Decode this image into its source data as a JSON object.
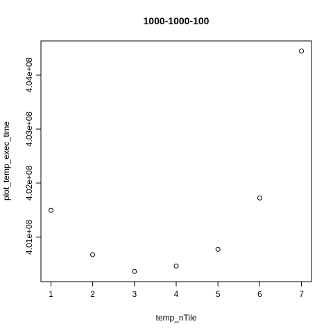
{
  "chart_data": {
    "type": "scatter",
    "title": "1000-1000-100",
    "xlabel": "temp_nTile",
    "ylabel": "plot_temp_exec_time",
    "x": [
      1,
      2,
      3,
      4,
      5,
      6,
      7
    ],
    "y": [
      401497000,
      400675000,
      400365000,
      400465000,
      400775000,
      401725000,
      404445000
    ],
    "xlim": [
      0.76,
      7.24
    ],
    "ylim": [
      400176000,
      404631000
    ],
    "xticks": [
      1,
      2,
      3,
      4,
      5,
      6,
      7
    ],
    "xtick_labels": [
      "1",
      "2",
      "3",
      "4",
      "5",
      "6",
      "7"
    ],
    "yticks": [
      401000000,
      402000000,
      403000000,
      404000000
    ],
    "ytick_labels": [
      "4.01e+08",
      "4.02e+08",
      "4.03e+08",
      "4.04e+08"
    ],
    "marker": "open-circle",
    "grid": false,
    "legend": "none"
  }
}
